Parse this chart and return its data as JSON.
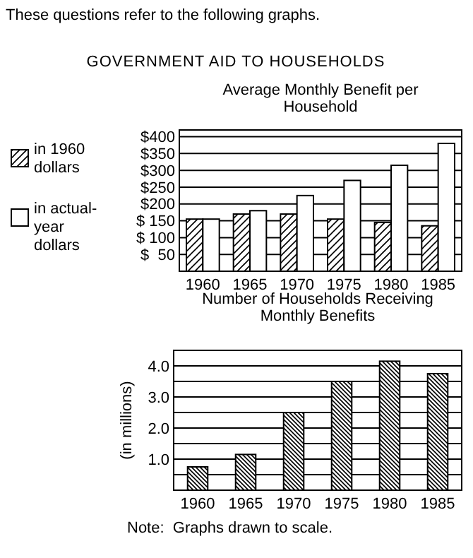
{
  "chart_data": [
    {
      "type": "bar",
      "title": "Average Monthly Benefit per Household",
      "annotations": [
        "These questions refer to the following graphs.",
        "GOVERNMENT AID TO HOUSEHOLDS"
      ],
      "categories": [
        "1960",
        "1965",
        "1970",
        "1975",
        "1980",
        "1985"
      ],
      "series": [
        {
          "name": "in 1960 dollars",
          "color": "#000000",
          "values": [
            155,
            170,
            170,
            155,
            145,
            135
          ]
        },
        {
          "name": "in actual-year dollars",
          "color": "#ffffff",
          "values": [
            155,
            180,
            225,
            270,
            315,
            380
          ]
        }
      ],
      "ylim": [
        0,
        420
      ],
      "yticks": [
        {
          "value": 50,
          "label": "$  50"
        },
        {
          "value": 100,
          "label": "$ 100"
        },
        {
          "value": 150,
          "label": "$ 150"
        },
        {
          "value": 200,
          "label": "$200"
        },
        {
          "value": 250,
          "label": "$250"
        },
        {
          "value": 300,
          "label": "$300"
        },
        {
          "value": 350,
          "label": "$350"
        },
        {
          "value": 400,
          "label": "$400"
        }
      ],
      "grid": "y",
      "legend": "left"
    },
    {
      "type": "bar",
      "title": "Number of Households Receiving Monthly Benefits",
      "ylabel": "(in millions)",
      "annotations": [
        "Note:  Graphs drawn to scale."
      ],
      "categories": [
        "1960",
        "1965",
        "1970",
        "1975",
        "1980",
        "1985"
      ],
      "series": [
        {
          "color": "#000000",
          "values": [
            0.75,
            1.15,
            2.5,
            3.5,
            4.15,
            3.75
          ]
        }
      ],
      "ylim": [
        0,
        4.5
      ],
      "yticks": [
        {
          "value": 0.5,
          "label": null
        },
        {
          "value": 1,
          "label": "1.0"
        },
        {
          "value": 1.5,
          "label": null
        },
        {
          "value": 2,
          "label": "2.0"
        },
        {
          "value": 2.5,
          "label": null
        },
        {
          "value": 3,
          "label": "3.0"
        },
        {
          "value": 3.5,
          "label": null
        },
        {
          "value": 4,
          "label": "4.0"
        }
      ],
      "grid": "y"
    }
  ]
}
